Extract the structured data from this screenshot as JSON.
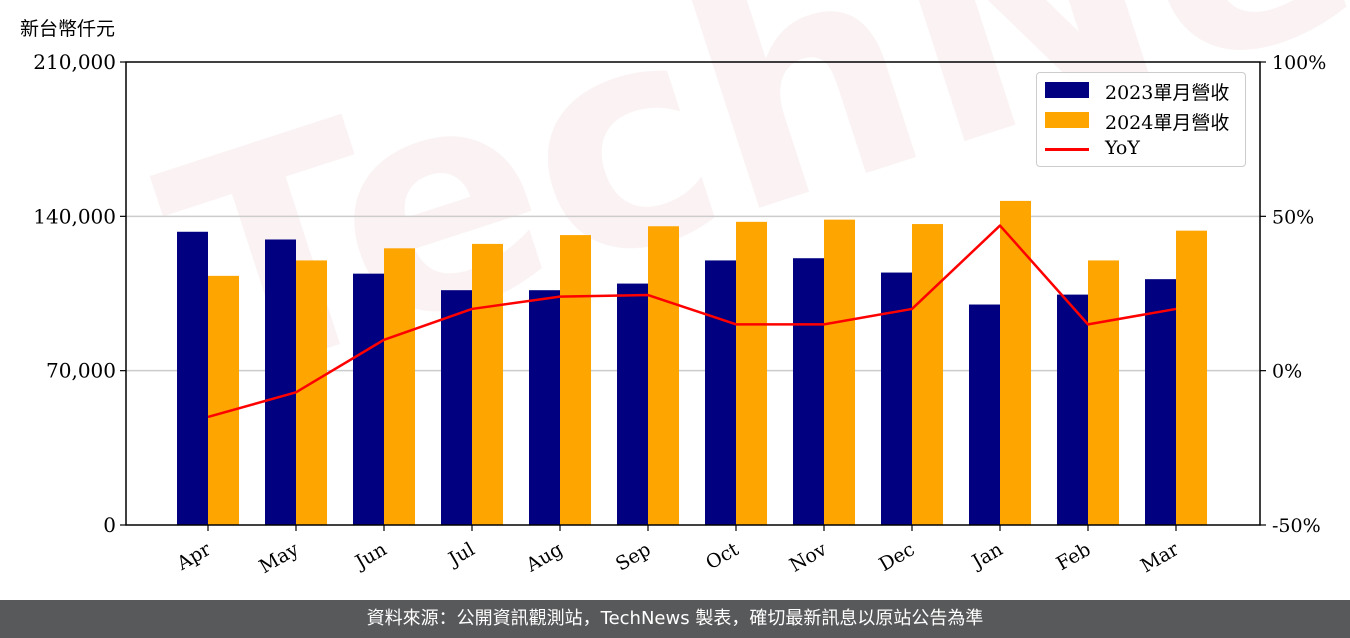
{
  "unit_label": "新台幣仟元",
  "footer_text": "資料來源：公開資訊觀測站，TechNews 製表，確切最新訊息以原站公告為準",
  "watermark_text": "TechNews",
  "colors": {
    "series_2023": "#000080",
    "series_2024": "#ffa500",
    "yoy": "#ff0000",
    "footer_bg": "#58595b"
  },
  "chart_data": {
    "type": "bar",
    "title": "",
    "categories": [
      "Apr",
      "May",
      "Jun",
      "Jul",
      "Aug",
      "Sep",
      "Oct",
      "Nov",
      "Dec",
      "Jan",
      "Feb",
      "Mar"
    ],
    "series": [
      {
        "name": "2023單月營收",
        "values": [
          133000,
          129500,
          114000,
          106500,
          106500,
          109500,
          120000,
          121000,
          114500,
          100000,
          104500,
          111500
        ]
      },
      {
        "name": "2024單月營收",
        "values": [
          113000,
          120000,
          125500,
          127500,
          131500,
          135500,
          137500,
          138500,
          136500,
          147000,
          120000,
          133500
        ]
      }
    ],
    "line_series": {
      "name": "YoY",
      "axis": "right",
      "values": [
        -15,
        -7,
        10,
        20,
        24,
        24.5,
        15,
        15,
        20,
        47,
        15,
        20
      ]
    },
    "ylim": [
      0,
      210000
    ],
    "yticks": [
      "0",
      "70,000",
      "140,000",
      "210,000"
    ],
    "ytick_values": [
      0,
      70000,
      140000,
      210000
    ],
    "y2lim": [
      -50,
      100
    ],
    "y2ticks": [
      "-50%",
      "0%",
      "50%",
      "100%"
    ],
    "y2tick_values": [
      -50,
      0,
      50,
      100
    ],
    "xlabel": "",
    "ylabel": "",
    "grid": "horizontal",
    "legend": "top-right"
  }
}
